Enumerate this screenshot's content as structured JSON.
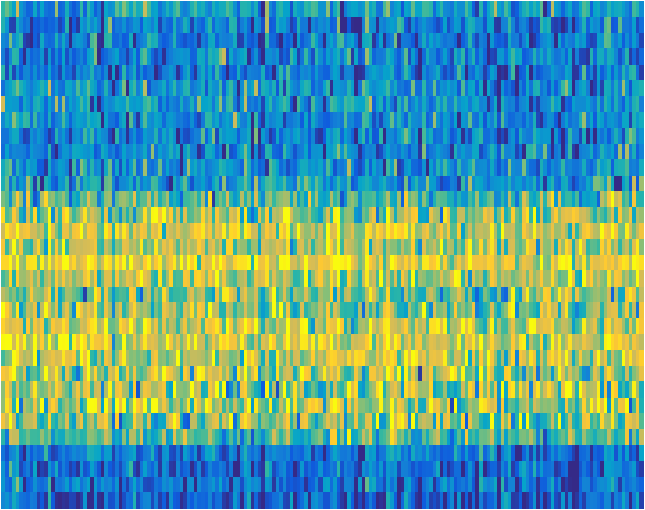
{
  "chart_data": {
    "type": "heatmap",
    "title": "",
    "xlabel": "",
    "ylabel": "",
    "colormap": "parula",
    "colormap_colors": [
      "#352a87",
      "#0f5cdd",
      "#1481d6",
      "#06a4ca",
      "#2eb7a4",
      "#87bf77",
      "#d1bb59",
      "#fec832",
      "#f9fb0e"
    ],
    "value_range": [
      0,
      1
    ],
    "n_rows": 32,
    "n_cols": 180,
    "seed": 7,
    "row_means": [
      0.35,
      0.22,
      0.25,
      0.28,
      0.22,
      0.3,
      0.33,
      0.3,
      0.25,
      0.28,
      0.3,
      0.33,
      0.52,
      0.65,
      0.75,
      0.7,
      0.82,
      0.72,
      0.62,
      0.65,
      0.75,
      0.78,
      0.72,
      0.7,
      0.68,
      0.7,
      0.62,
      0.5,
      0.2,
      0.2,
      0.2,
      0.15
    ],
    "row_spread": [
      0.14,
      0.14,
      0.15,
      0.14,
      0.14,
      0.15,
      0.15,
      0.14,
      0.15,
      0.15,
      0.15,
      0.16,
      0.18,
      0.16,
      0.14,
      0.14,
      0.12,
      0.16,
      0.18,
      0.17,
      0.15,
      0.15,
      0.18,
      0.2,
      0.22,
      0.22,
      0.22,
      0.15,
      0.12,
      0.12,
      0.12,
      0.12
    ]
  }
}
